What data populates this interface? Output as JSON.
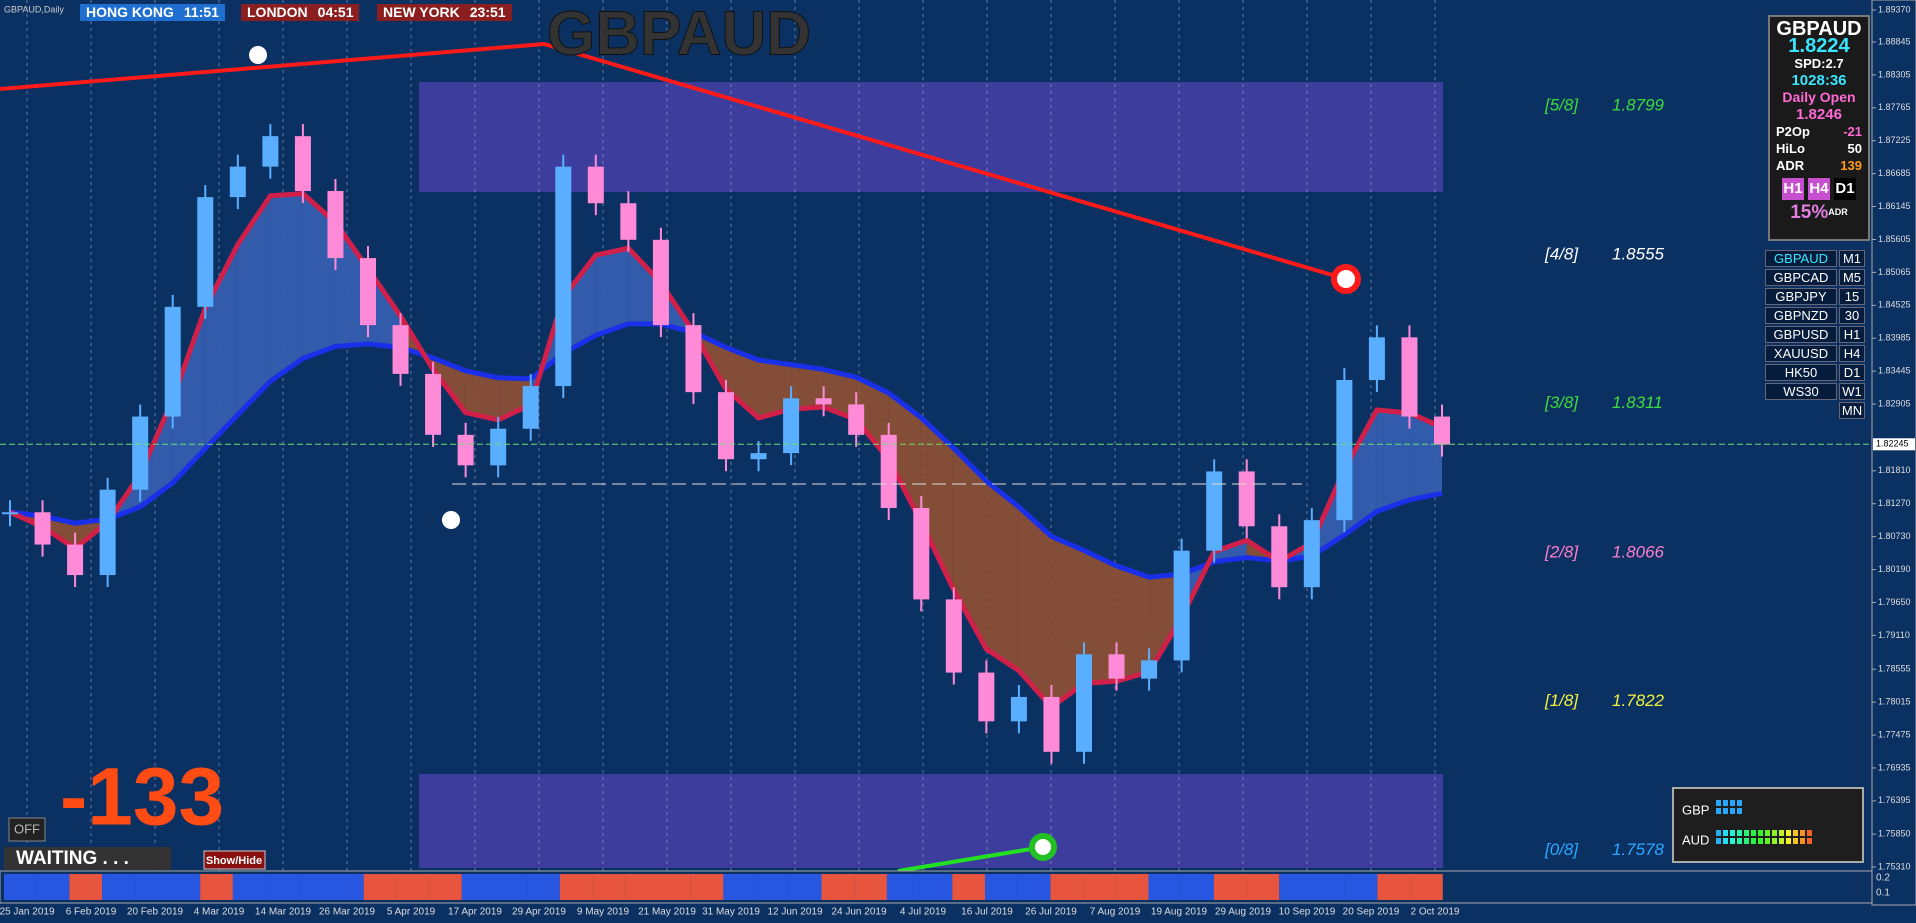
{
  "header": {
    "symbol": "GBPAUD,Daily",
    "clocks": [
      {
        "city": "HONG KONG",
        "time": "11:51"
      },
      {
        "city": "LONDON",
        "time": "04:51"
      },
      {
        "city": "NEW YORK",
        "time": "23:51"
      }
    ],
    "title": "GBPAUD"
  },
  "chart": {
    "closes": [
      1.8113,
      1.806,
      1.801,
      1.815,
      1.827,
      1.845,
      1.863,
      1.868,
      1.873,
      1.864,
      1.853,
      1.842,
      1.834,
      1.824,
      1.819,
      1.825,
      1.832,
      1.868,
      1.862,
      1.856,
      1.842,
      1.831,
      1.82,
      1.821,
      1.83,
      1.829,
      1.824,
      1.812,
      1.797,
      1.785,
      1.777,
      1.781,
      1.772,
      1.788,
      1.784,
      1.787,
      1.805,
      1.818,
      1.809,
      1.799,
      1.81,
      1.833,
      1.84,
      1.827,
      1.8224
    ],
    "price_ticks": [
      {
        "value": 1.8937,
        "label": "1.89370"
      },
      {
        "value": 1.88845,
        "label": "1.88845"
      },
      {
        "value": 1.88305,
        "label": "1.88305"
      },
      {
        "value": 1.87765,
        "label": "1.87765"
      },
      {
        "value": 1.87225,
        "label": "1.87225"
      },
      {
        "value": 1.86685,
        "label": "1.86685"
      },
      {
        "value": 1.86145,
        "label": "1.86145"
      },
      {
        "value": 1.85605,
        "label": "1.85605"
      },
      {
        "value": 1.85065,
        "label": "1.85065"
      },
      {
        "value": 1.84525,
        "label": "1.84525"
      },
      {
        "value": 1.83985,
        "label": "1.83985"
      },
      {
        "value": 1.83445,
        "label": "1.83445"
      },
      {
        "value": 1.82905,
        "label": "1.82905"
      },
      {
        "value": 1.8181,
        "label": "1.81810"
      },
      {
        "value": 1.8127,
        "label": "1.81270"
      },
      {
        "value": 1.8073,
        "label": "1.80730"
      },
      {
        "value": 1.8019,
        "label": "1.80190"
      },
      {
        "value": 1.7965,
        "label": "1.79650"
      },
      {
        "value": 1.7911,
        "label": "1.79110"
      },
      {
        "value": 1.78555,
        "label": "1.78555"
      },
      {
        "value": 1.78015,
        "label": "1.78015"
      },
      {
        "value": 1.77475,
        "label": "1.77475"
      },
      {
        "value": 1.76935,
        "label": "1.76935"
      },
      {
        "value": 1.76395,
        "label": "1.76395"
      },
      {
        "value": 1.7585,
        "label": "1.75850"
      },
      {
        "value": 1.7531,
        "label": "1.75310"
      }
    ],
    "current_price": {
      "value": 1.82245,
      "label": "1.82245"
    },
    "dates": [
      "25 Jan 2019",
      "6 Feb 2019",
      "20 Feb 2019",
      "4 Mar 2019",
      "14 Mar 2019",
      "26 Mar 2019",
      "5 Apr 2019",
      "17 Apr 2019",
      "29 Apr 2019",
      "9 May 2019",
      "21 May 2019",
      "31 May 2019",
      "12 Jun 2019",
      "24 Jun 2019",
      "4 Jul 2019",
      "16 Jul 2019",
      "26 Jul 2019",
      "7 Aug 2019",
      "19 Aug 2019",
      "29 Aug 2019",
      "10 Sep 2019",
      "20 Sep 2019",
      "2 Oct 2019"
    ],
    "levels": [
      {
        "label": "[5/8]",
        "value": 1.8799,
        "color": "#3ddc3d"
      },
      {
        "label": "[4/8]",
        "value": 1.8555,
        "color": "#ffffff"
      },
      {
        "label": "[3/8]",
        "value": 1.8311,
        "color": "#3ddc3d"
      },
      {
        "label": "[2/8]",
        "value": 1.8066,
        "color": "#ff7fc8"
      },
      {
        "label": "[1/8]",
        "value": 1.7822,
        "color": "#f2f23c"
      },
      {
        "label": "[0/8]",
        "value": 1.7578,
        "color": "#29a8ff"
      }
    ]
  },
  "info_panel": {
    "symbol": "GBPAUD",
    "price": "1.8224",
    "spread": "SPD:2.7",
    "timer": "1028:36",
    "daily_open_label": "Daily Open",
    "daily_open": "1.8246",
    "rows": [
      [
        "P2Op",
        "-21"
      ],
      [
        "HiLo",
        "50"
      ],
      [
        "ADR",
        "139"
      ]
    ],
    "timeframes": [
      "H1",
      "H4",
      "D1"
    ],
    "adr_pct": "15%",
    "adr_label": "ADR"
  },
  "symbols": [
    {
      "name": "GBPAUD",
      "tf": "M1"
    },
    {
      "name": "GBPCAD",
      "tf": "M5"
    },
    {
      "name": "GBPJPY",
      "tf": "15"
    },
    {
      "name": "GBPNZD",
      "tf": "30"
    },
    {
      "name": "GBPUSD",
      "tf": "H1"
    },
    {
      "name": "XAUUSD",
      "tf": "H4"
    },
    {
      "name": "HK50",
      "tf": "D1"
    },
    {
      "name": "WS30",
      "tf": "W1"
    }
  ],
  "extra_tf": "MN",
  "counter": "-133",
  "off": "OFF",
  "status": "WAITING . . .",
  "toggle": "Show/Hide",
  "strength": [
    "GBP",
    "AUD"
  ],
  "sub_axis": [
    "0.2",
    "0.1"
  ]
}
